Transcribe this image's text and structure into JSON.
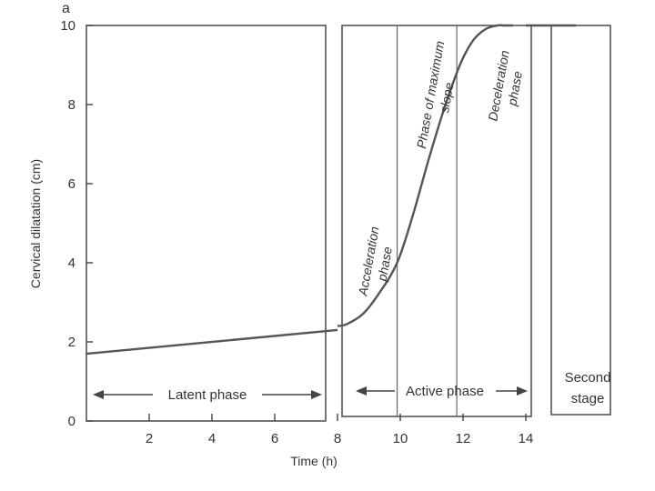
{
  "chart_data": {
    "type": "line",
    "xlabel": "Time (h)",
    "ylabel": "Cervical dilatation (cm)",
    "xlim": [
      0,
      14
    ],
    "ylim": [
      0,
      10
    ],
    "x_ticks": [
      2,
      4,
      6,
      8,
      10,
      12,
      14
    ],
    "y_ticks": [
      0,
      2,
      4,
      6,
      8,
      10
    ],
    "series": [
      {
        "segment": "latent",
        "x": [
          0,
          8
        ],
        "y": [
          1.7,
          2.3
        ]
      },
      {
        "segment": "active",
        "x": [
          8.0,
          8.3,
          8.8,
          9.3,
          9.9,
          10.4,
          10.9,
          11.4,
          11.9,
          12.3,
          12.7,
          13.1,
          13.3,
          13.6
        ],
        "y": [
          2.4,
          2.45,
          2.7,
          3.2,
          4.0,
          5.2,
          6.6,
          7.9,
          9.0,
          9.6,
          9.9,
          10.0,
          10.0,
          10.0
        ]
      },
      {
        "segment": "second-stage",
        "x": [
          14.0,
          15.6
        ],
        "y": [
          10.0,
          10.0
        ]
      }
    ],
    "phase_boundaries_x": [
      9.9,
      11.8
    ],
    "annotations": {
      "latent_phase": "Latent phase",
      "active_phase": "Active phase",
      "second_stage_line1": "Second",
      "second_stage_line2": "stage",
      "acceleration_line1": "Acceleration",
      "acceleration_line2": "phase",
      "max_slope_line1": "Phase of maximum",
      "max_slope_line2": "slope",
      "deceleration_line1": "Deceleration",
      "deceleration_line2": "phase"
    },
    "corner_mark": "a"
  }
}
